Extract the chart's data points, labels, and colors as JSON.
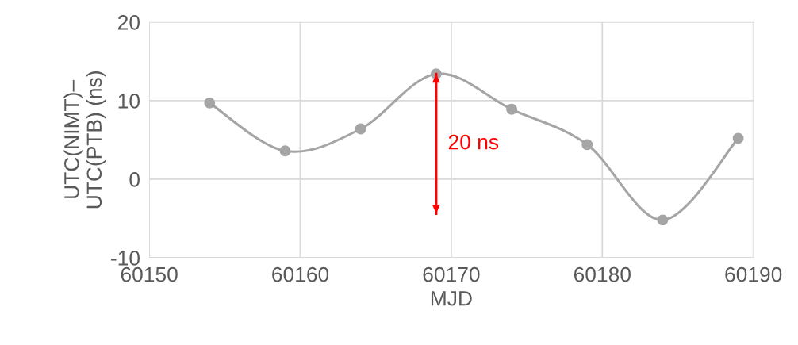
{
  "chart_data": {
    "type": "line",
    "xlabel": "MJD",
    "ylabel": "UTC(NIMT)–\nUTC(PTB) (ns)",
    "xlim": [
      60150,
      60190
    ],
    "xticks": [
      60150,
      60160,
      60170,
      60180,
      60190
    ],
    "ylim": [
      -10,
      20
    ],
    "yticks": [
      -10,
      0,
      10,
      20
    ],
    "grid": true,
    "marker": "circle",
    "line_style": "solid",
    "series": [
      {
        "color": "#a5a5a5",
        "x": [
          60154,
          60159,
          60164,
          60169,
          60174,
          60179,
          60184,
          60189
        ],
        "values": [
          9.7,
          3.6,
          6.4,
          13.4,
          8.9,
          4.4,
          -5.2,
          5.2
        ]
      },
      {
        "color": "#ff0000",
        "marker": "none",
        "x": [
          60169,
          60169
        ],
        "values": [
          13.4,
          -4.4
        ]
      }
    ],
    "annotations": [
      {
        "text": "20 ns",
        "x": 60169,
        "y": 4.5
      }
    ]
  }
}
